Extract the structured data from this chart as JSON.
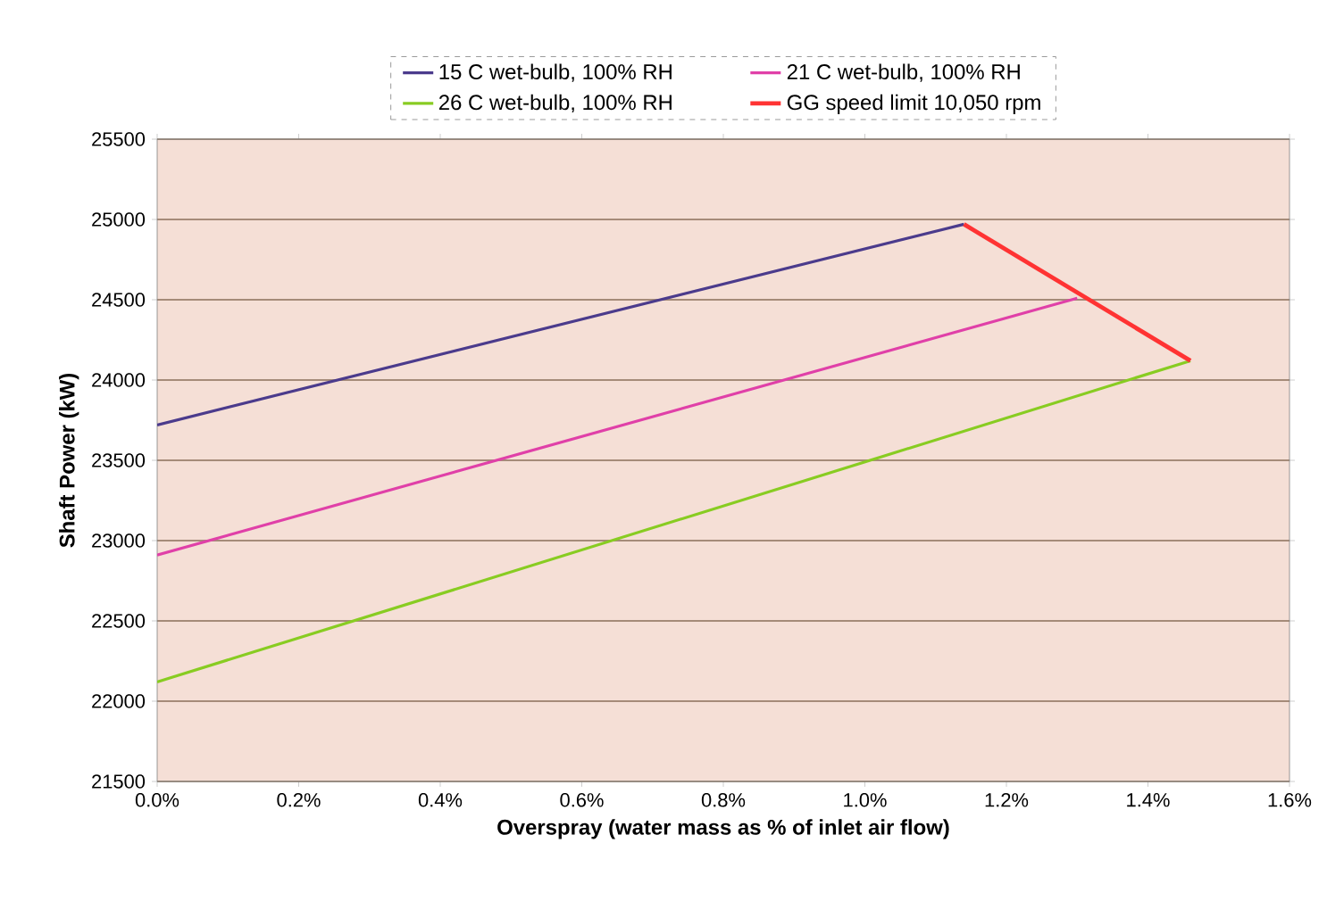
{
  "chart_data": {
    "type": "line",
    "xlabel": "Overspray (water mass as % of inlet air flow)",
    "ylabel": "Shaft Power (kW)",
    "series": [
      {
        "name": "15 C wet-bulb, 100% RH",
        "color": "#4b3b8c",
        "x": [
          0,
          1.14
        ],
        "values": [
          23720,
          24970
        ]
      },
      {
        "name": "21 C wet-bulb, 100% RH",
        "color": "#e040a8",
        "x": [
          0,
          1.3
        ],
        "values": [
          22910,
          24510
        ]
      },
      {
        "name": "26 C wet-bulb, 100% RH",
        "color": "#88cc22",
        "x": [
          0,
          1.46
        ],
        "values": [
          22120,
          24120
        ]
      },
      {
        "name": "GG speed limit 10,050 rpm",
        "color": "#ff3333",
        "x": [
          1.14,
          1.46
        ],
        "values": [
          24970,
          24120
        ]
      }
    ],
    "xlim": [
      0,
      1.6
    ],
    "ylim": [
      21500,
      25500
    ],
    "xticks": [
      {
        "value": 0,
        "label": "0.0%"
      },
      {
        "value": 0.2,
        "label": "0.2%"
      },
      {
        "value": 0.4,
        "label": "0.4%"
      },
      {
        "value": 0.6,
        "label": "0.6%"
      },
      {
        "value": 0.8,
        "label": "0.8%"
      },
      {
        "value": 1.0,
        "label": "1.0%"
      },
      {
        "value": 1.2,
        "label": "1.2%"
      },
      {
        "value": 1.4,
        "label": "1.4%"
      },
      {
        "value": 1.6,
        "label": "1.6%"
      }
    ],
    "yticks": [
      21500,
      22000,
      22500,
      23000,
      23500,
      24000,
      24500,
      25000,
      25500
    ],
    "grid": "y",
    "legend": "top",
    "marker": "none",
    "line_style": "solid"
  }
}
